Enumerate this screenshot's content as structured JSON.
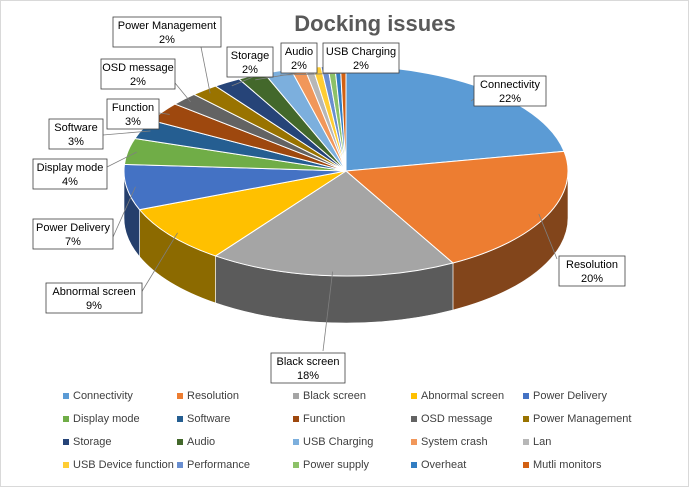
{
  "chart_data": {
    "type": "pie",
    "title": "Docking issues",
    "legend_position": "bottom",
    "slices": [
      {
        "name": "Connectivity",
        "value": 22,
        "label": "22%",
        "color": "#5B9BD5"
      },
      {
        "name": "Resolution",
        "value": 20,
        "label": "20%",
        "color": "#ED7D31"
      },
      {
        "name": "Black screen",
        "value": 18,
        "label": "18%",
        "color": "#A5A5A5"
      },
      {
        "name": "Abnormal screen",
        "value": 9,
        "label": "9%",
        "color": "#FFC000"
      },
      {
        "name": "Power Delivery",
        "value": 7,
        "label": "7%",
        "color": "#4472C4"
      },
      {
        "name": "Display mode",
        "value": 4,
        "label": "4%",
        "color": "#70AD47"
      },
      {
        "name": "Software",
        "value": 3,
        "label": "3%",
        "color": "#255E91"
      },
      {
        "name": "Function",
        "value": 3,
        "label": "3%",
        "color": "#9E480E"
      },
      {
        "name": "OSD message",
        "value": 2,
        "label": "2%",
        "color": "#636363"
      },
      {
        "name": "Power Management",
        "value": 2,
        "label": "2%",
        "color": "#997300"
      },
      {
        "name": "Storage",
        "value": 2,
        "label": "2%",
        "color": "#264478"
      },
      {
        "name": "Audio",
        "value": 2,
        "label": "2%",
        "color": "#43682B"
      },
      {
        "name": "USB Charging",
        "value": 2,
        "label": "2%",
        "color": "#7CAFDD"
      },
      {
        "name": "System crash",
        "value": 1,
        "label": "",
        "color": "#F1975A"
      },
      {
        "name": "Lan",
        "value": 0.6,
        "label": "",
        "color": "#B7B7B7"
      },
      {
        "name": "USB Device function",
        "value": 0.6,
        "label": "",
        "color": "#FFCD33"
      },
      {
        "name": "Performance",
        "value": 0.5,
        "label": "",
        "color": "#698ED0"
      },
      {
        "name": "Power supply",
        "value": 0.5,
        "label": "",
        "color": "#8CC168"
      },
      {
        "name": "Overheat",
        "value": 0.4,
        "label": "",
        "color": "#327DC2"
      },
      {
        "name": "Mutli monitors",
        "value": 0.4,
        "label": "",
        "color": "#D26012"
      }
    ]
  }
}
